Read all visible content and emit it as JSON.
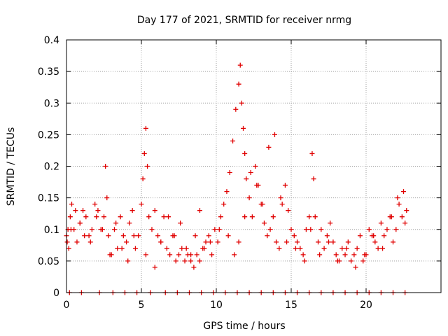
{
  "chart_data": {
    "type": "scatter",
    "title": "Day 177 of 2021, SRMTID for receiver nrmg",
    "xlabel": "GPS time / hours",
    "ylabel": "SRMTID / TECUs",
    "xlim": [
      0,
      25
    ],
    "ylim": [
      0,
      0.4
    ],
    "xticks": [
      0,
      5,
      10,
      15,
      20
    ],
    "xtick_labels": [
      "0",
      "5",
      "10",
      "15",
      "20"
    ],
    "yticks": [
      0,
      0.05,
      0.1,
      0.15,
      0.2,
      0.25,
      0.3,
      0.35,
      0.4
    ],
    "ytick_labels": [
      "0",
      "0.05",
      "0.1",
      "0.15",
      "0.2",
      "0.25",
      "0.3",
      "0.35",
      "0.4"
    ],
    "grid": true,
    "marker": "+",
    "series_color": "#e00000",
    "series": [
      {
        "name": "SRMTID",
        "x": [
          0.0,
          0.1,
          0.15,
          0.25,
          0.35,
          0.5,
          0.7,
          0.9,
          1.1,
          1.3,
          1.5,
          1.7,
          1.9,
          2.1,
          2.3,
          2.5,
          2.6,
          2.7,
          2.8,
          3.0,
          3.2,
          3.4,
          3.6,
          3.8,
          4.0,
          4.2,
          4.4,
          4.6,
          4.8,
          5.0,
          5.1,
          5.2,
          5.3,
          5.4,
          5.5,
          5.7,
          5.9,
          6.1,
          6.3,
          6.5,
          6.7,
          6.9,
          7.1,
          7.3,
          7.5,
          7.7,
          7.9,
          8.1,
          8.3,
          8.5,
          8.7,
          8.9,
          9.1,
          9.3,
          9.5,
          9.7,
          9.9,
          10.1,
          10.3,
          10.5,
          10.7,
          10.9,
          11.1,
          11.3,
          11.5,
          11.6,
          11.7,
          11.8,
          11.9,
          12.0,
          12.2,
          12.4,
          12.6,
          12.8,
          13.0,
          13.2,
          13.4,
          13.6,
          13.8,
          14.0,
          14.2,
          14.4,
          14.6,
          14.8,
          15.0,
          15.2,
          15.4,
          15.6,
          15.8,
          16.0,
          16.2,
          16.4,
          16.5,
          16.6,
          16.8,
          17.0,
          17.2,
          17.4,
          17.6,
          17.8,
          18.0,
          18.2,
          18.4,
          18.6,
          18.8,
          19.0,
          19.2,
          19.4,
          19.6,
          19.8,
          20.0,
          20.2,
          20.4,
          20.6,
          20.8,
          21.0,
          21.2,
          21.4,
          21.6,
          21.8,
          22.0,
          22.2,
          22.4,
          22.6,
          22.7,
          0.05,
          0.3,
          0.6,
          0.9,
          1.2,
          1.6,
          2.0,
          2.4,
          2.9,
          3.3,
          3.7,
          4.1,
          4.5,
          5.3,
          5.9,
          6.3,
          6.8,
          7.2,
          7.6,
          8.0,
          8.3,
          8.6,
          8.9,
          9.2,
          9.6,
          10.2,
          10.8,
          11.2,
          11.5,
          11.9,
          12.3,
          12.7,
          13.1,
          13.5,
          13.9,
          14.3,
          14.7,
          15.3,
          15.9,
          16.3,
          16.9,
          17.5,
          18.1,
          18.7,
          19.3,
          19.9,
          20.5,
          21.1,
          21.7,
          22.1,
          22.5,
          0.2,
          1.0,
          2.2,
          3.1,
          3.9,
          4.7,
          5.6,
          6.6,
          7.4,
          8.2,
          9.0,
          9.8,
          10.6,
          11.4,
          12.2,
          13.0,
          13.8,
          14.6,
          15.4,
          16.2,
          17.0,
          17.8,
          18.6,
          19.4,
          20.2,
          21.0,
          21.8,
          22.6
        ],
        "y": [
          0.09,
          0.1,
          0.07,
          0.12,
          0.14,
          0.1,
          0.08,
          0.11,
          0.13,
          0.12,
          0.09,
          0.1,
          0.14,
          0.13,
          0.1,
          0.12,
          0.2,
          0.15,
          0.09,
          0.06,
          0.1,
          0.07,
          0.12,
          0.09,
          0.08,
          0.11,
          0.13,
          0.07,
          0.09,
          0.14,
          0.18,
          0.22,
          0.26,
          0.2,
          0.12,
          0.1,
          0.13,
          0.09,
          0.08,
          0.12,
          0.07,
          0.06,
          0.09,
          0.05,
          0.06,
          0.07,
          0.05,
          0.06,
          0.05,
          0.04,
          0.06,
          0.05,
          0.07,
          0.08,
          0.09,
          0.06,
          0.1,
          0.08,
          0.12,
          0.14,
          0.16,
          0.19,
          0.24,
          0.29,
          0.33,
          0.36,
          0.3,
          0.26,
          0.22,
          0.18,
          0.15,
          0.12,
          0.2,
          0.17,
          0.14,
          0.11,
          0.09,
          0.1,
          0.12,
          0.08,
          0.07,
          0.14,
          0.17,
          0.13,
          0.1,
          0.09,
          0.08,
          0.07,
          0.06,
          0.1,
          0.12,
          0.22,
          0.18,
          0.12,
          0.08,
          0.1,
          0.07,
          0.09,
          0.11,
          0.08,
          0.06,
          0.05,
          0.07,
          0.06,
          0.08,
          0.05,
          0.06,
          0.07,
          0.09,
          0.05,
          0.06,
          0.1,
          0.09,
          0.08,
          0.07,
          0.11,
          0.09,
          0.1,
          0.12,
          0.08,
          0.1,
          0.14,
          0.12,
          0.11,
          0.13,
          0.08,
          0.1,
          0.13,
          0.11,
          0.09,
          0.08,
          0.12,
          0.1,
          0.06,
          0.11,
          0.07,
          0.05,
          0.09,
          0.06,
          0.04,
          0.08,
          0.12,
          0.09,
          0.11,
          0.07,
          0.06,
          0.09,
          0.13,
          0.07,
          0.08,
          0.1,
          0.09,
          0.06,
          0.08,
          0.12,
          0.19,
          0.17,
          0.14,
          0.23,
          0.25,
          0.15,
          0.08,
          0.07,
          0.05,
          0.1,
          0.06,
          0.08,
          0.05,
          0.07,
          0.04,
          0.06,
          0.09,
          0.07,
          0.12,
          0.15,
          0.16,
          0.0,
          0.0,
          0.0,
          0.0,
          0.0,
          0.0,
          0.0,
          0.0,
          0.0,
          0.0,
          0.0,
          0.0,
          0.0,
          0.0,
          0.0,
          0.0,
          0.0,
          0.0,
          0.0,
          0.0,
          0.0,
          0.0,
          0.0,
          0.0,
          0.0,
          0.0,
          0.0,
          0.0
        ]
      }
    ]
  }
}
